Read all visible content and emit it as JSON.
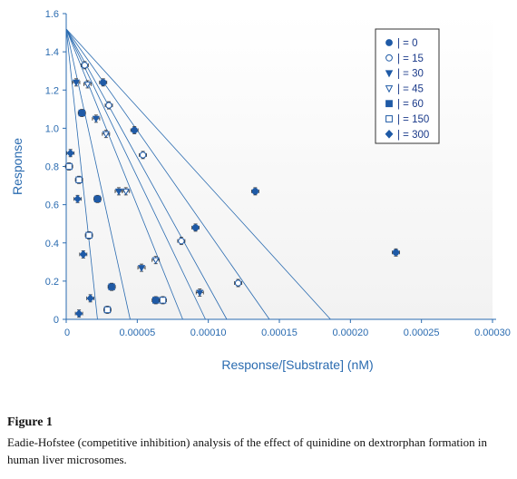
{
  "chart_data": {
    "type": "scatter",
    "title": "",
    "xlabel": "Response/[Substrate] (nM)",
    "ylabel": "Response",
    "xlim": [
      0,
      0.0003
    ],
    "ylim": [
      0,
      1.6
    ],
    "x_ticks": [
      {
        "value": 0,
        "label": "0"
      },
      {
        "value": 5e-05,
        "label": "0.00005"
      },
      {
        "value": 0.0001,
        "label": "0.00010"
      },
      {
        "value": 0.00015,
        "label": "0.00015"
      },
      {
        "value": 0.0002,
        "label": "0.00020"
      },
      {
        "value": 0.00025,
        "label": "0.00025"
      },
      {
        "value": 0.0003,
        "label": "0.00030"
      }
    ],
    "y_ticks": [
      {
        "value": 0,
        "label": "0"
      },
      {
        "value": 0.2,
        "label": "0.2"
      },
      {
        "value": 0.4,
        "label": "0.4"
      },
      {
        "value": 0.6,
        "label": "0.6"
      },
      {
        "value": 0.8,
        "label": "0.8"
      },
      {
        "value": 1.0,
        "label": "1.0"
      },
      {
        "value": 1.2,
        "label": "1.2"
      },
      {
        "value": 1.4,
        "label": "1.4"
      },
      {
        "value": 1.6,
        "label": "1.6"
      }
    ],
    "grid": false,
    "legend_position": "top-right",
    "point_color": "#1f5aa6",
    "line_color": "#2a6bb0",
    "axis_color": "#2a6bb0",
    "series": [
      {
        "name": "| = 0",
        "marker": "circle-filled",
        "points": [
          [
            0.000232,
            0.35
          ],
          [
            0.000133,
            0.67
          ],
          [
            9.1e-05,
            0.48
          ],
          [
            4.8e-05,
            0.99
          ],
          [
            2.6e-05,
            1.24
          ]
        ]
      },
      {
        "name": "| = 15",
        "marker": "circle-open",
        "points": [
          [
            0.000121,
            0.19
          ],
          [
            8.1e-05,
            0.41
          ],
          [
            5.4e-05,
            0.86
          ],
          [
            3e-05,
            1.12
          ],
          [
            1.3e-05,
            1.33
          ]
        ]
      },
      {
        "name": "| = 30",
        "marker": "triangle-filled",
        "points": [
          [
            9.4e-05,
            0.14
          ],
          [
            5.3e-05,
            0.27
          ],
          [
            3.7e-05,
            0.67
          ],
          [
            2.1e-05,
            1.05
          ],
          [
            7e-06,
            1.24
          ]
        ]
      },
      {
        "name": "| = 45",
        "marker": "triangle-open",
        "points": [
          [
            6.3e-05,
            0.31
          ],
          [
            4.2e-05,
            0.67
          ],
          [
            2.8e-05,
            0.97
          ],
          [
            1.5e-05,
            1.23
          ]
        ]
      },
      {
        "name": "| = 60",
        "marker": "square-filled",
        "points": [
          [
            6.3e-05,
            0.1
          ],
          [
            3.2e-05,
            0.17
          ],
          [
            2.2e-05,
            0.63
          ],
          [
            1.1e-05,
            1.08
          ]
        ]
      },
      {
        "name": "| = 150",
        "marker": "square-open",
        "points": [
          [
            6.8e-05,
            0.1
          ],
          [
            2.9e-05,
            0.05
          ],
          [
            1.6e-05,
            0.44
          ],
          [
            9e-06,
            0.73
          ],
          [
            2e-06,
            0.8
          ]
        ]
      },
      {
        "name": "| = 300",
        "marker": "diamond-filled",
        "points": [
          [
            1.7e-05,
            0.11
          ],
          [
            1.2e-05,
            0.34
          ],
          [
            8e-06,
            0.63
          ],
          [
            3e-06,
            0.87
          ],
          [
            9e-06,
            0.03
          ]
        ]
      }
    ],
    "fit_lines": [
      {
        "y_intercept": 1.52,
        "x_intercept": 0.000186
      },
      {
        "y_intercept": 1.52,
        "x_intercept": 0.000143
      },
      {
        "y_intercept": 1.52,
        "x_intercept": 0.000113
      },
      {
        "y_intercept": 1.52,
        "x_intercept": 9.8e-05
      },
      {
        "y_intercept": 1.52,
        "x_intercept": 8.2e-05
      },
      {
        "y_intercept": 1.52,
        "x_intercept": 4.5e-05
      },
      {
        "y_intercept": 1.52,
        "x_intercept": 2.2e-05
      }
    ]
  },
  "caption": {
    "label": "Figure 1",
    "text": "Eadie-Hofstee (competitive inhibition) analysis of the effect of quinidine on dextrorphan formation in human liver microsomes."
  }
}
